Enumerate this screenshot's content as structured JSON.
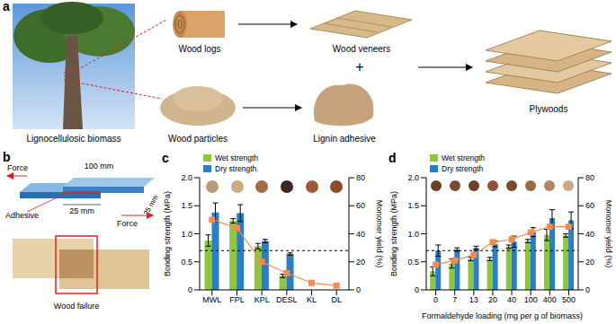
{
  "panels": {
    "a": {
      "label": "a",
      "source": "Lignocellulosic biomass",
      "logs": "Wood logs",
      "veneers": "Wood veneers",
      "particles": "Wood particles",
      "adhesive": "Lignin adhesive",
      "plus": "+",
      "product": "Plywoods"
    },
    "b": {
      "label": "b",
      "force_left": "Force",
      "force_right": "Force",
      "adhesive": "Adhesive",
      "length": "100 mm",
      "overlap": "25 mm",
      "width": "25 mm",
      "failure": "Wood failure"
    }
  },
  "chart_data": [
    {
      "panel": "c",
      "type": "bar",
      "categories": [
        "MWL",
        "FPL",
        "KPL",
        "DESL",
        "KL",
        "DL"
      ],
      "y_label": "Bonding strength (MPa)",
      "y2_label": "Monomer yield (%)",
      "ylim": [
        0,
        2
      ],
      "yticks": [
        0,
        0.5,
        {
          "value": 1,
          "label": "1.0"
        },
        1.5,
        {
          "value": 2,
          "label": "2.0"
        }
      ],
      "y2lim": [
        0,
        80
      ],
      "y2ticks": [
        0,
        20,
        40,
        60,
        80
      ],
      "reference_value": 0.7,
      "legend": "upper left",
      "series": [
        {
          "name": "Wet strength",
          "color": "#8dc63f",
          "values": [
            0.88,
            1.23,
            0.78,
            0.25,
            null,
            null
          ],
          "errors": [
            0.1,
            0.04,
            0.05,
            0.03,
            null,
            null
          ]
        },
        {
          "name": "Dry strength",
          "color": "#2a7fc4",
          "values": [
            1.38,
            1.37,
            0.87,
            0.64,
            null,
            null
          ],
          "errors": [
            0.17,
            0.15,
            0.03,
            0.02,
            null,
            null
          ]
        },
        {
          "type": "line",
          "marker": "square",
          "color": "#f58b4c",
          "axis": "y2",
          "values": [
            50,
            44,
            20,
            12,
            5,
            3
          ]
        }
      ]
    },
    {
      "panel": "d",
      "type": "bar",
      "categories": [
        "0",
        "7",
        "13",
        "20",
        "40",
        "100",
        "400",
        "500"
      ],
      "x_label": "Formaldehyde loading (mg per g of biomass)",
      "y_label": "Bonding strength (MPa)",
      "y2_label": "Monomer yield (%)",
      "ylim": [
        0,
        2
      ],
      "yticks": [
        0,
        0.5,
        {
          "value": 1,
          "label": "1.0"
        },
        1.5,
        {
          "value": 2,
          "label": "2.0"
        }
      ],
      "y2lim": [
        0,
        80
      ],
      "y2ticks": [
        0,
        20,
        40,
        60,
        80
      ],
      "reference_value": 0.7,
      "legend": "upper left",
      "series": [
        {
          "name": "Wet strength",
          "color": "#8dc63f",
          "values": [
            0.33,
            0.47,
            0.55,
            0.55,
            0.77,
            0.87,
            0.98,
            0.97
          ],
          "errors": [
            0.08,
            0.08,
            0.03,
            0.03,
            0.03,
            0.03,
            0.1,
            0.03
          ]
        },
        {
          "name": "Dry strength",
          "color": "#2a7fc4",
          "values": [
            0.7,
            0.72,
            0.75,
            0.82,
            0.86,
            1.03,
            1.28,
            1.24
          ],
          "errors": [
            0.1,
            0.03,
            0.03,
            0.05,
            0.1,
            0.08,
            0.15,
            0.15
          ]
        },
        {
          "type": "line",
          "marker": "square",
          "color": "#f58b4c",
          "axis": "y2",
          "values": [
            18,
            21,
            25,
            34,
            36,
            41,
            45,
            45
          ]
        }
      ]
    }
  ]
}
